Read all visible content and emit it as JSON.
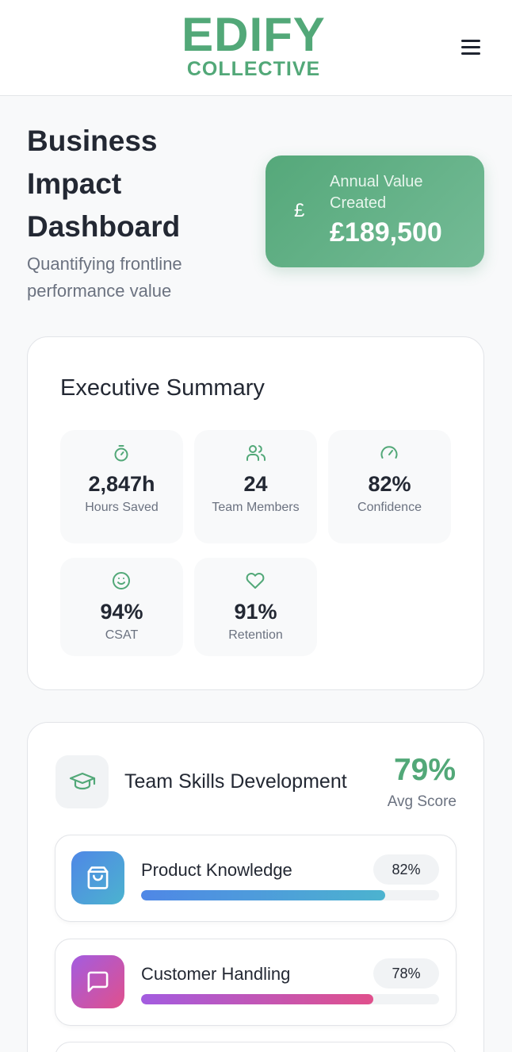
{
  "header": {
    "logo_main": "EDIFY",
    "logo_sub": "COLLECTIVE"
  },
  "hero": {
    "title": "Business Impact Dashboard",
    "subtitle": "Quantifying frontline performance value",
    "value_card": {
      "currency_symbol": "£",
      "label": "Annual Value Created",
      "amount": "£189,500"
    }
  },
  "summary": {
    "title": "Executive Summary",
    "metrics": [
      {
        "icon": "stopwatch-icon",
        "value": "2,847h",
        "label": "Hours Saved"
      },
      {
        "icon": "users-icon",
        "value": "24",
        "label": "Team Members"
      },
      {
        "icon": "gauge-icon",
        "value": "82%",
        "label": "Confidence"
      },
      {
        "icon": "smile-icon",
        "value": "94%",
        "label": "CSAT"
      },
      {
        "icon": "heart-icon",
        "value": "91%",
        "label": "Retention"
      }
    ]
  },
  "skills": {
    "title": "Team Skills Development",
    "avg_score": "79%",
    "avg_label": "Avg Score",
    "items": [
      {
        "icon": "shopping-bag-icon",
        "name": "Product Knowledge",
        "percent_label": "82%",
        "level": 82,
        "color_start": "#4f87e6",
        "color_end": "#4cb3cf"
      },
      {
        "icon": "chat-bubble-icon",
        "name": "Customer Handling",
        "percent_label": "78%",
        "level": 78,
        "color_start": "#a35ce0",
        "color_end": "#e0508c"
      }
    ]
  },
  "colors": {
    "accent": "#52a878",
    "text": "#232833",
    "muted": "#6b7280"
  }
}
